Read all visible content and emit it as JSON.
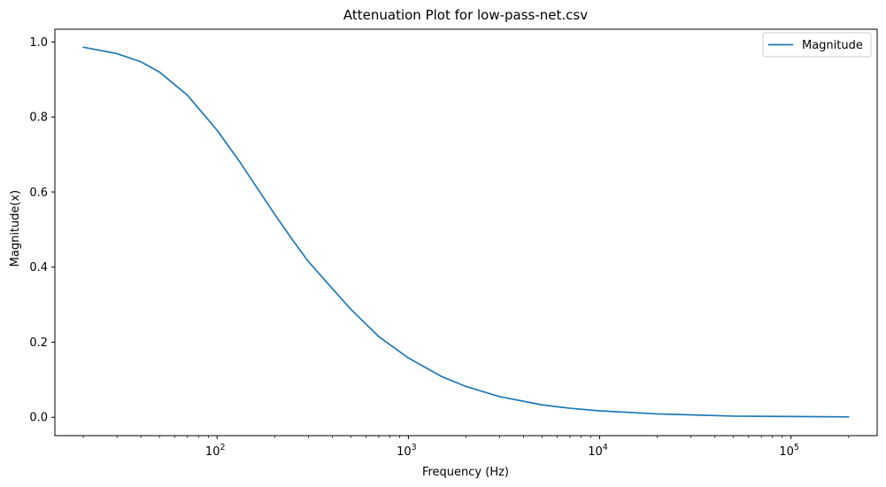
{
  "chart_data": {
    "type": "line",
    "title": "Attenuation Plot for low-pass-net.csv",
    "xlabel": "Frequency (Hz)",
    "ylabel": "Magnitude(x)",
    "x_scale": "log",
    "xlim": [
      14.2,
      282000
    ],
    "ylim": [
      -0.049,
      1.034
    ],
    "x_ticks": [
      {
        "base": "10",
        "exp": "2",
        "value": 100
      },
      {
        "base": "10",
        "exp": "3",
        "value": 1000
      },
      {
        "base": "10",
        "exp": "4",
        "value": 10000
      },
      {
        "base": "10",
        "exp": "5",
        "value": 100000
      }
    ],
    "y_ticks": [
      {
        "label": "0.0",
        "value": 0.0
      },
      {
        "label": "0.2",
        "value": 0.2
      },
      {
        "label": "0.4",
        "value": 0.4
      },
      {
        "label": "0.6",
        "value": 0.6
      },
      {
        "label": "0.8",
        "value": 0.8
      },
      {
        "label": "1.0",
        "value": 1.0
      }
    ],
    "grid": false,
    "legend": {
      "position": "top-right"
    },
    "series": [
      {
        "name": "Magnitude",
        "color": "#1f77b4",
        "x": [
          20,
          30,
          40,
          50,
          70,
          100,
          130,
          160,
          200,
          250,
          300,
          400,
          500,
          700,
          1000,
          1500,
          2000,
          3000,
          5000,
          7000,
          10000,
          20000,
          50000,
          100000,
          200000
        ],
        "y": [
          0.986,
          0.969,
          0.947,
          0.92,
          0.858,
          0.765,
          0.684,
          0.615,
          0.541,
          0.47,
          0.415,
          0.343,
          0.288,
          0.215,
          0.158,
          0.108,
          0.082,
          0.055,
          0.033,
          0.024,
          0.017,
          0.009,
          0.003,
          0.002,
          0.001
        ]
      }
    ]
  }
}
